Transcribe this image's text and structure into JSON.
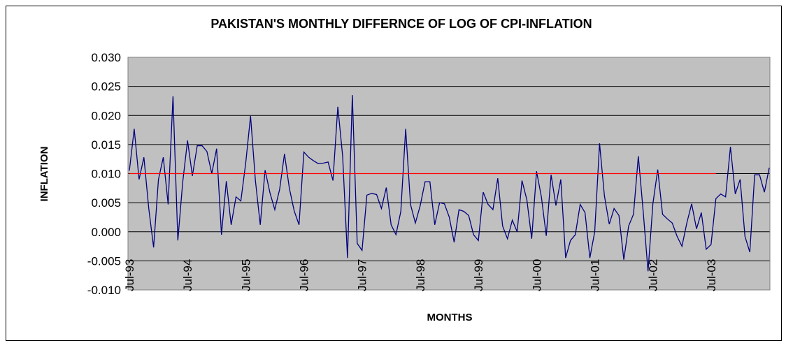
{
  "chart_data": {
    "type": "line",
    "title": "PAKISTAN'S MONTHLY DIFFERNCE OF LOG OF CPI-INFLATION",
    "y_label": "INFLATION",
    "x_label": "MONTHS",
    "categories": [
      "Jul-93",
      null,
      null,
      null,
      null,
      null,
      null,
      null,
      null,
      null,
      null,
      null,
      "Jul-94",
      null,
      null,
      null,
      null,
      null,
      null,
      null,
      null,
      null,
      null,
      null,
      "Jul-95",
      null,
      null,
      null,
      null,
      null,
      null,
      null,
      null,
      null,
      null,
      null,
      "Jul-96",
      null,
      null,
      null,
      null,
      null,
      null,
      null,
      null,
      null,
      null,
      null,
      "Jul-97",
      null,
      null,
      null,
      null,
      null,
      null,
      null,
      null,
      null,
      null,
      null,
      "Jul-98",
      null,
      null,
      null,
      null,
      null,
      null,
      null,
      null,
      null,
      null,
      null,
      "Jul-99",
      null,
      null,
      null,
      null,
      null,
      null,
      null,
      null,
      null,
      null,
      null,
      "Jul-00",
      null,
      null,
      null,
      null,
      null,
      null,
      null,
      null,
      null,
      null,
      null,
      "Jul-01",
      null,
      null,
      null,
      null,
      null,
      null,
      null,
      null,
      null,
      null,
      null,
      "Jul-02",
      null,
      null,
      null,
      null,
      null,
      null,
      null,
      null,
      null,
      null,
      null,
      "Jul-03",
      null,
      null,
      null,
      null,
      null,
      null,
      null,
      null,
      null,
      null,
      null,
      null
    ],
    "series": [
      {
        "color": "#000080",
        "values": [
          0.0105,
          0.0177,
          0.009,
          0.0128,
          0.004,
          -0.0027,
          0.009,
          0.0128,
          0.0047,
          0.0233,
          -0.0015,
          0.0085,
          0.0157,
          0.0096,
          0.0148,
          0.0148,
          0.0138,
          0.01,
          0.0143,
          -0.0005,
          0.0087,
          0.0012,
          0.006,
          0.0053,
          0.0118,
          0.0199,
          0.0088,
          0.0012,
          0.0106,
          0.0067,
          0.0038,
          0.0073,
          0.0134,
          0.0075,
          0.0036,
          0.0012,
          0.0137,
          0.0128,
          0.0122,
          0.0117,
          0.0118,
          0.012,
          0.0088,
          0.0215,
          0.013,
          -0.0045,
          0.0235,
          -0.002,
          -0.0032,
          0.0063,
          0.0066,
          0.0064,
          0.004,
          0.0076,
          0.0012,
          -0.0005,
          0.0035,
          0.0177,
          0.0047,
          0.0015,
          0.0045,
          0.0086,
          0.0086,
          0.0012,
          0.005,
          0.0048,
          0.0025,
          -0.0018,
          0.0038,
          0.0035,
          0.0028,
          -0.0005,
          -0.0015,
          0.0068,
          0.0047,
          0.0038,
          0.0092,
          0.001,
          -0.0012,
          0.002,
          0.0,
          0.0088,
          0.0055,
          -0.0012,
          0.0104,
          0.006,
          -0.0007,
          0.0098,
          0.0045,
          0.009,
          -0.0045,
          -0.0015,
          -0.0005,
          0.0047,
          0.0033,
          -0.0045,
          0.0,
          0.0152,
          0.0062,
          0.0013,
          0.004,
          0.0028,
          -0.0048,
          0.001,
          0.003,
          0.013,
          0.0035,
          -0.0068,
          0.0048,
          0.0107,
          0.003,
          0.0022,
          0.0015,
          -0.0008,
          -0.0025,
          0.0015,
          0.0048,
          0.0005,
          0.0033,
          -0.003,
          -0.0022,
          0.0057,
          0.0065,
          0.006,
          0.0146,
          0.0065,
          0.009,
          -0.0008,
          -0.0035,
          0.0098,
          0.0098,
          0.0068,
          0.011
        ]
      },
      {
        "color": "#ff0000",
        "values": [
          0.01,
          0.01,
          0.01,
          0.01,
          0.01,
          0.01,
          0.01,
          0.01,
          0.01,
          0.01,
          0.01,
          0.01,
          0.01,
          0.01,
          0.01,
          0.01,
          0.01,
          0.01,
          0.01,
          0.01,
          0.01,
          0.01,
          0.01,
          0.01,
          0.01,
          0.01,
          0.01,
          0.01,
          0.01,
          0.01,
          0.01,
          0.01,
          0.01,
          0.01,
          0.01,
          0.01,
          0.01,
          0.01,
          0.01,
          0.01,
          0.01,
          0.01,
          0.01,
          0.01,
          0.01,
          0.01,
          0.01,
          0.01,
          0.01,
          0.01,
          0.01,
          0.01,
          0.01,
          0.01,
          0.01,
          0.01,
          0.01,
          0.01,
          0.01,
          0.01,
          0.01,
          0.01,
          0.01,
          0.01,
          0.01,
          0.01,
          0.01,
          0.01,
          0.01,
          0.01,
          0.01,
          0.01,
          0.01,
          0.01,
          0.01,
          0.01,
          0.01,
          0.01,
          0.01,
          0.01,
          0.01,
          0.01,
          0.01,
          0.01,
          0.01,
          0.01,
          0.01,
          0.01,
          0.01,
          0.01,
          0.01,
          0.01,
          0.01,
          0.01,
          0.01,
          0.01,
          0.01,
          0.01,
          0.01,
          0.01,
          0.01,
          0.01,
          0.01,
          0.01,
          0.01,
          0.01,
          0.01,
          0.01,
          0.01,
          0.01,
          0.01,
          0.01,
          0.01,
          0.01,
          0.01,
          0.01,
          0.01,
          0.01,
          0.01,
          0.01,
          0.01,
          0.01,
          null,
          null,
          null,
          null,
          null,
          null,
          null,
          null,
          null,
          null,
          null
        ]
      }
    ],
    "ylim": [
      -0.01,
      0.03
    ],
    "yticks": [
      {
        "value": -0.01,
        "label": "-0.010"
      },
      {
        "value": -0.005,
        "label": "-0.005"
      },
      {
        "value": 0,
        "label": "0.000"
      },
      {
        "value": 0.005,
        "label": "0.005"
      },
      {
        "value": 0.01,
        "label": "0.010"
      },
      {
        "value": 0.015,
        "label": "0.015"
      },
      {
        "value": 0.02,
        "label": "0.020"
      },
      {
        "value": 0.025,
        "label": "0.025"
      },
      {
        "value": 0.03,
        "label": "0.030"
      }
    ],
    "grid": true,
    "plot_background": "#c0c0c0"
  }
}
